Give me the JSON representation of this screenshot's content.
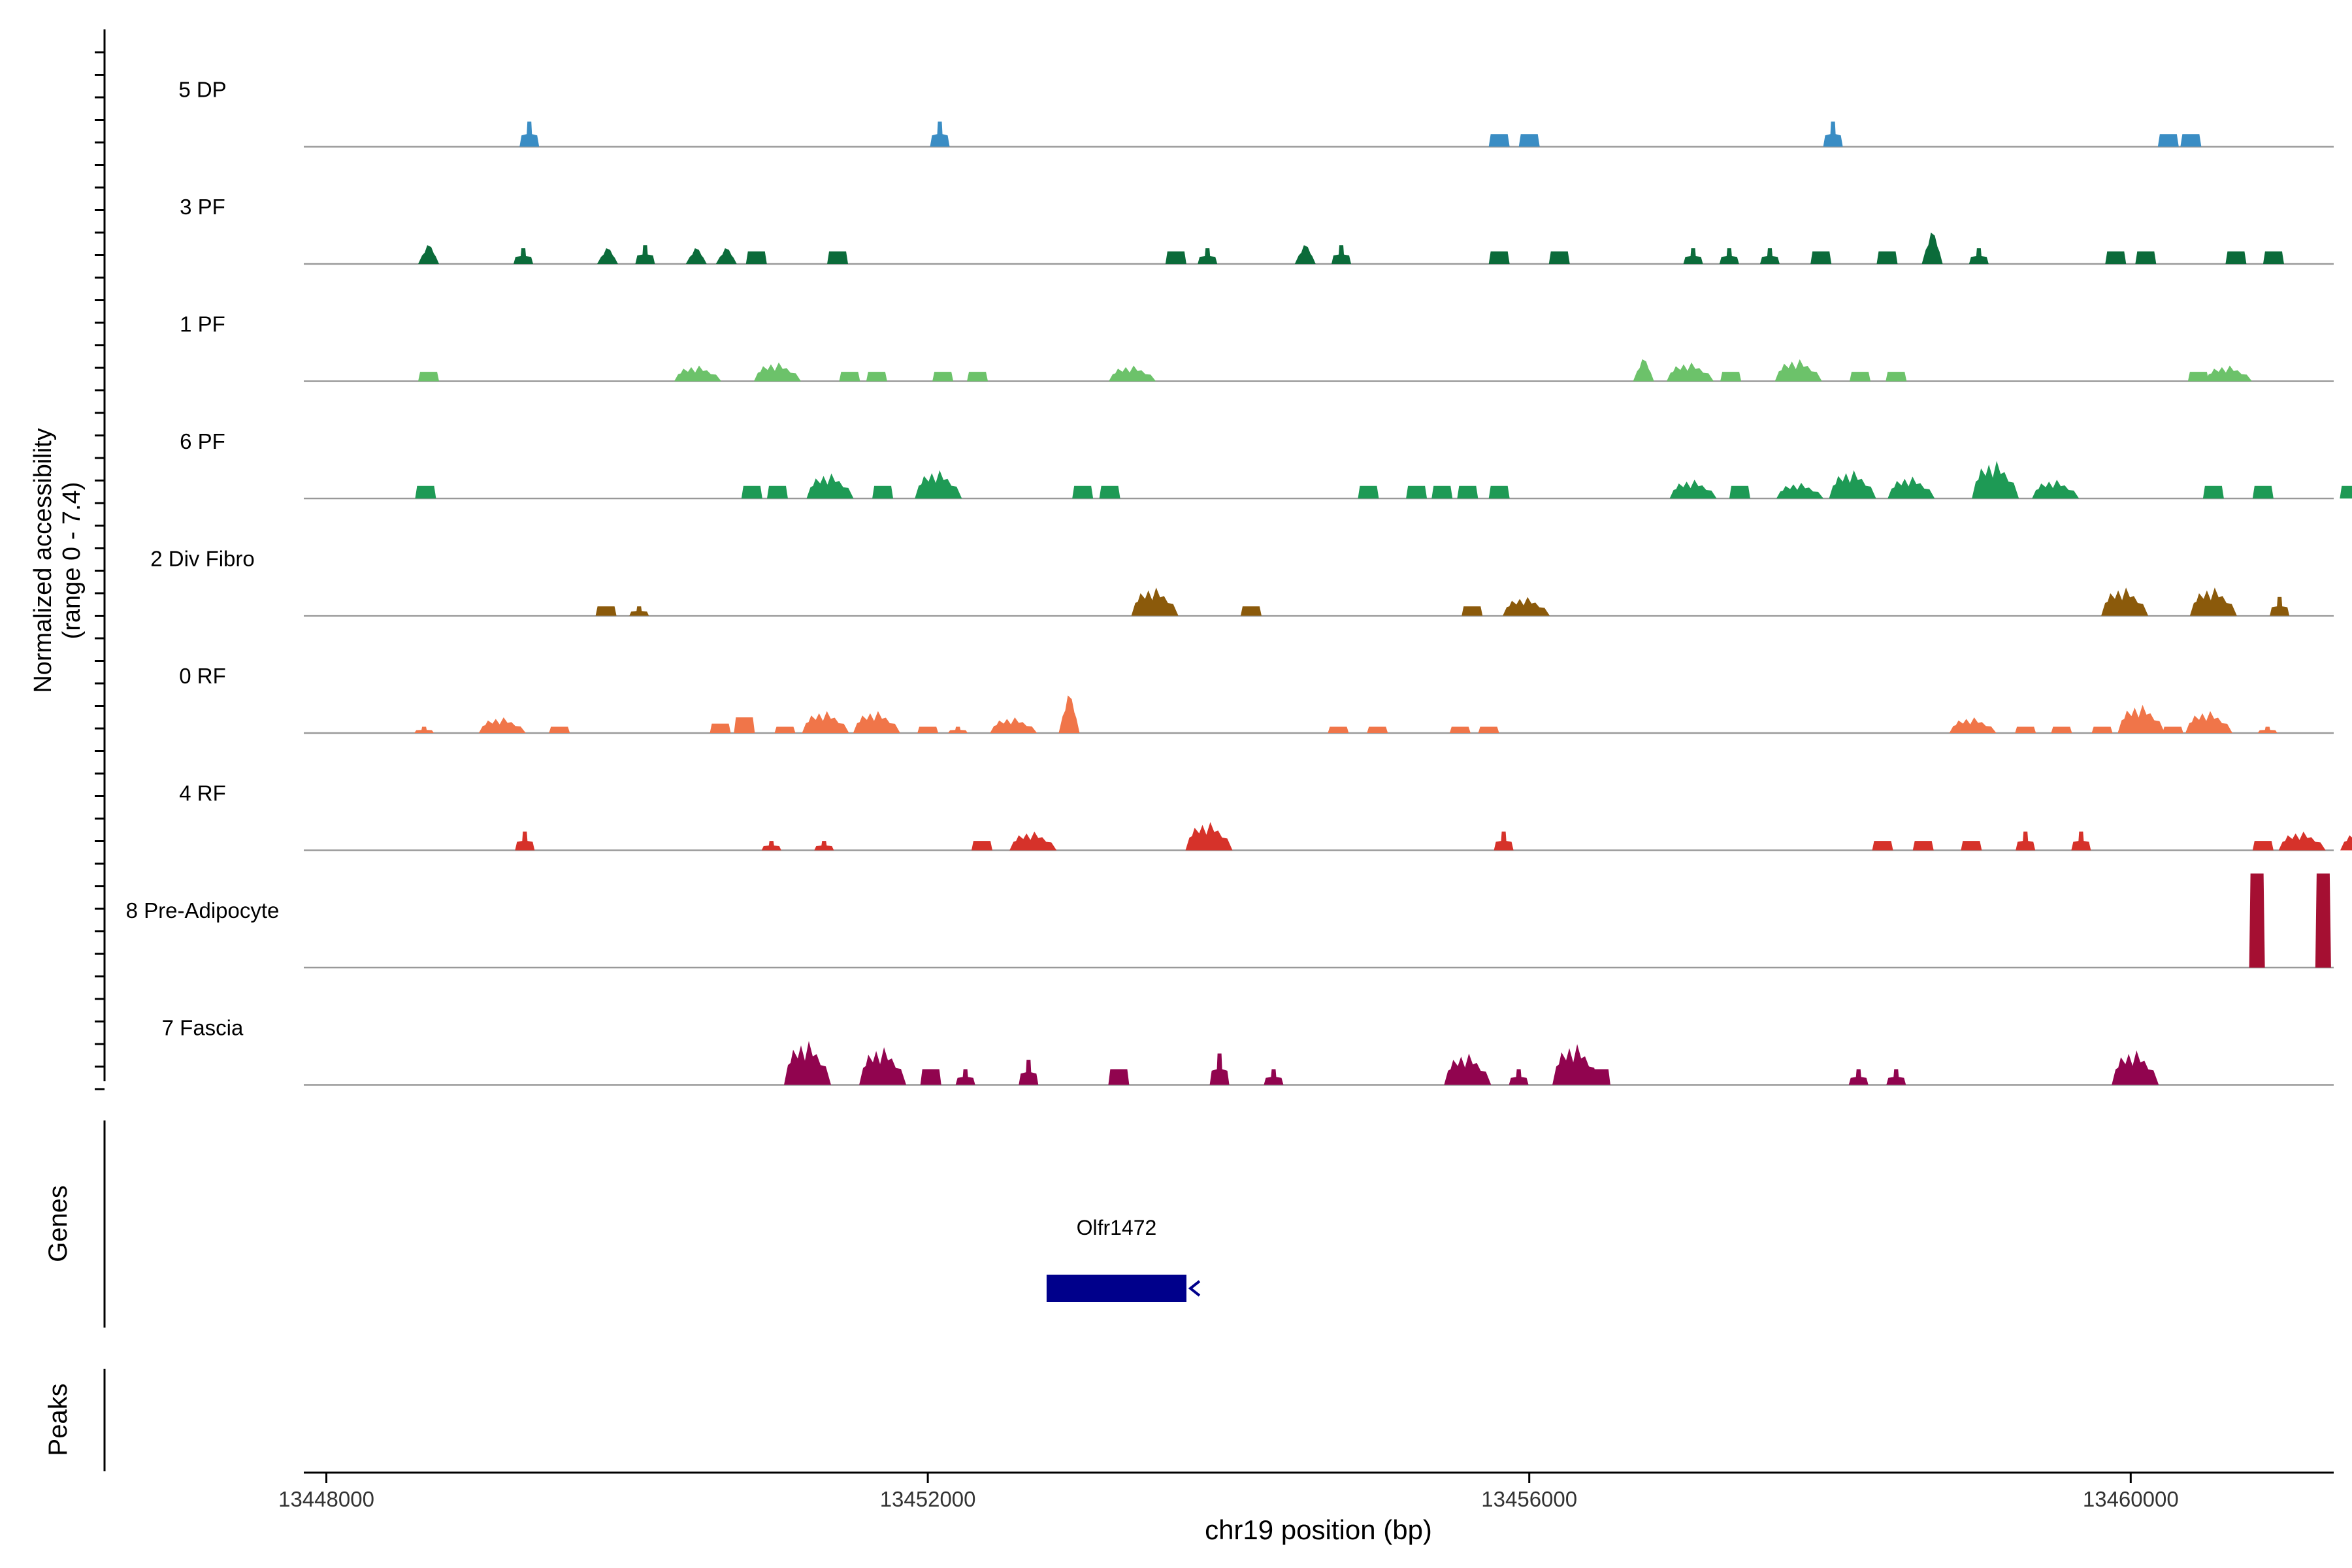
{
  "chart_data": {
    "type": "area",
    "ylabel_line1": "Normalized accessibility",
    "ylabel_line2": "(range 0 - 7.4)",
    "y_range": [
      0,
      7.4
    ],
    "xlabel": "chr19 position (bp)",
    "x_range": [
      13447850,
      13461350
    ],
    "x_ticks": [
      13448000,
      13452000,
      13456000,
      13460000
    ],
    "x_tick_labels": [
      "13448000",
      "13452000",
      "13456000",
      "13460000"
    ],
    "genes_label": "Genes",
    "peaks_label": "Peaks",
    "gene": {
      "name": "Olfr1472",
      "start": 13452790,
      "end": 13453720,
      "strand": "-",
      "color": "#00008B"
    },
    "tracks": [
      {
        "name": "5 DP",
        "color": "#3A8DC4",
        "peaks": [
          [
            13449350,
            0.8,
            "n"
          ],
          [
            13452080,
            0.8,
            "n"
          ],
          [
            13455800,
            0.4,
            "b"
          ],
          [
            13456000,
            0.4,
            "b"
          ],
          [
            13458020,
            0.8,
            "n"
          ],
          [
            13460250,
            0.4,
            "b"
          ],
          [
            13460400,
            0.4,
            "b"
          ]
        ]
      },
      {
        "name": "3 PF",
        "color": "#0B6B3A",
        "peaks": [
          [
            13448680,
            0.6,
            "w"
          ],
          [
            13449310,
            0.5,
            "n"
          ],
          [
            13449870,
            0.5,
            "w"
          ],
          [
            13450120,
            0.6,
            "n"
          ],
          [
            13450460,
            0.5,
            "w"
          ],
          [
            13450660,
            0.5,
            "w"
          ],
          [
            13450860,
            0.4,
            "b"
          ],
          [
            13451400,
            0.4,
            "b"
          ],
          [
            13453650,
            0.4,
            "b"
          ],
          [
            13453860,
            0.5,
            "n"
          ],
          [
            13454510,
            0.6,
            "w"
          ],
          [
            13454750,
            0.6,
            "n"
          ],
          [
            13455800,
            0.4,
            "b"
          ],
          [
            13456200,
            0.4,
            "b"
          ],
          [
            13457090,
            0.5,
            "n"
          ],
          [
            13457330,
            0.5,
            "n"
          ],
          [
            13457600,
            0.5,
            "n"
          ],
          [
            13457940,
            0.4,
            "b"
          ],
          [
            13458380,
            0.4,
            "b"
          ],
          [
            13458680,
            1.0,
            "w"
          ],
          [
            13458990,
            0.5,
            "n"
          ],
          [
            13459900,
            0.4,
            "b"
          ],
          [
            13460100,
            0.4,
            "b"
          ],
          [
            13460700,
            0.4,
            "b"
          ],
          [
            13460950,
            0.4,
            "b"
          ]
        ]
      },
      {
        "name": "1 PF",
        "color": "#6CC26A",
        "peaks": [
          [
            13448680,
            0.3,
            "b"
          ],
          [
            13450470,
            0.5,
            "f"
          ],
          [
            13451000,
            0.6,
            "f"
          ],
          [
            13451480,
            0.3,
            "b"
          ],
          [
            13451660,
            0.3,
            "b"
          ],
          [
            13452100,
            0.3,
            "b"
          ],
          [
            13452330,
            0.3,
            "b"
          ],
          [
            13453360,
            0.5,
            "f"
          ],
          [
            13456760,
            0.7,
            "w"
          ],
          [
            13457070,
            0.6,
            "f"
          ],
          [
            13457340,
            0.3,
            "b"
          ],
          [
            13457790,
            0.7,
            "f"
          ],
          [
            13458200,
            0.3,
            "b"
          ],
          [
            13458440,
            0.3,
            "b"
          ],
          [
            13460450,
            0.3,
            "b"
          ],
          [
            13460650,
            0.5,
            "f"
          ]
        ]
      },
      {
        "name": "6 PF",
        "color": "#1E9A55",
        "peaks": [
          [
            13448660,
            0.4,
            "b"
          ],
          [
            13450830,
            0.4,
            "b"
          ],
          [
            13451000,
            0.4,
            "b"
          ],
          [
            13451350,
            0.8,
            "f"
          ],
          [
            13451700,
            0.4,
            "b"
          ],
          [
            13452070,
            0.9,
            "f"
          ],
          [
            13453030,
            0.4,
            "b"
          ],
          [
            13453210,
            0.4,
            "b"
          ],
          [
            13454930,
            0.4,
            "b"
          ],
          [
            13455250,
            0.4,
            "b"
          ],
          [
            13455420,
            0.4,
            "b"
          ],
          [
            13455590,
            0.4,
            "b"
          ],
          [
            13455800,
            0.4,
            "b"
          ],
          [
            13457090,
            0.6,
            "f"
          ],
          [
            13457400,
            0.4,
            "b"
          ],
          [
            13457800,
            0.5,
            "f"
          ],
          [
            13458150,
            0.9,
            "f"
          ],
          [
            13458540,
            0.7,
            "f"
          ],
          [
            13459100,
            1.2,
            "f"
          ],
          [
            13459500,
            0.6,
            "f"
          ],
          [
            13460550,
            0.4,
            "b"
          ],
          [
            13460880,
            0.4,
            "b"
          ],
          [
            13461460,
            0.4,
            "b"
          ]
        ]
      },
      {
        "name": "2 Div Fibro",
        "color": "#8B5A0B",
        "peaks": [
          [
            13449860,
            0.3,
            "b"
          ],
          [
            13450080,
            0.3,
            "n"
          ],
          [
            13453510,
            0.9,
            "f"
          ],
          [
            13454150,
            0.3,
            "b"
          ],
          [
            13455620,
            0.3,
            "b"
          ],
          [
            13455980,
            0.6,
            "f"
          ],
          [
            13459960,
            0.9,
            "f"
          ],
          [
            13460550,
            0.9,
            "f"
          ],
          [
            13460990,
            0.6,
            "n"
          ]
        ]
      },
      {
        "name": "0 RF",
        "color": "#F07549",
        "peaks": [
          [
            13448650,
            0.2,
            "n"
          ],
          [
            13449170,
            0.5,
            "f"
          ],
          [
            13449550,
            0.2,
            "b"
          ],
          [
            13450620,
            0.3,
            "b"
          ],
          [
            13450780,
            0.5,
            "b"
          ],
          [
            13451050,
            0.2,
            "b"
          ],
          [
            13451320,
            0.7,
            "f"
          ],
          [
            13451660,
            0.7,
            "f"
          ],
          [
            13452000,
            0.2,
            "b"
          ],
          [
            13452200,
            0.2,
            "n"
          ],
          [
            13452570,
            0.5,
            "f"
          ],
          [
            13452940,
            1.2,
            "w"
          ],
          [
            13454730,
            0.2,
            "b"
          ],
          [
            13454990,
            0.2,
            "b"
          ],
          [
            13455540,
            0.2,
            "b"
          ],
          [
            13455730,
            0.2,
            "b"
          ],
          [
            13458950,
            0.5,
            "f"
          ],
          [
            13459300,
            0.2,
            "b"
          ],
          [
            13459540,
            0.2,
            "b"
          ],
          [
            13459810,
            0.2,
            "b"
          ],
          [
            13460070,
            0.9,
            "f"
          ],
          [
            13460280,
            0.2,
            "b"
          ],
          [
            13460520,
            0.7,
            "f"
          ],
          [
            13460910,
            0.2,
            "n"
          ]
        ]
      },
      {
        "name": "4 RF",
        "color": "#D6322A",
        "peaks": [
          [
            13449320,
            0.6,
            "n"
          ],
          [
            13450960,
            0.3,
            "n"
          ],
          [
            13451310,
            0.3,
            "n"
          ],
          [
            13452360,
            0.3,
            "b"
          ],
          [
            13452700,
            0.6,
            "f"
          ],
          [
            13453870,
            0.9,
            "f"
          ],
          [
            13455830,
            0.6,
            "n"
          ],
          [
            13458350,
            0.3,
            "b"
          ],
          [
            13458620,
            0.3,
            "b"
          ],
          [
            13458940,
            0.3,
            "b"
          ],
          [
            13459300,
            0.6,
            "n"
          ],
          [
            13459670,
            0.6,
            "n"
          ],
          [
            13460880,
            0.3,
            "b"
          ],
          [
            13461140,
            0.6,
            "f"
          ],
          [
            13461550,
            0.6,
            "f"
          ]
        ]
      },
      {
        "name": "8 Pre-Adipocyte",
        "color": "#A50F32",
        "peaks": [
          [
            13460840,
            3.0,
            "c"
          ],
          [
            13461280,
            3.0,
            "c"
          ]
        ]
      },
      {
        "name": "7 Fascia",
        "color": "#91044F",
        "peaks": [
          [
            13451200,
            1.4,
            "f"
          ],
          [
            13451700,
            1.2,
            "f"
          ],
          [
            13452020,
            0.5,
            "b"
          ],
          [
            13452250,
            0.5,
            "n"
          ],
          [
            13452670,
            0.8,
            "n"
          ],
          [
            13453270,
            0.5,
            "b"
          ],
          [
            13453940,
            1.0,
            "n"
          ],
          [
            13454300,
            0.5,
            "n"
          ],
          [
            13455590,
            1.0,
            "f"
          ],
          [
            13455930,
            0.5,
            "n"
          ],
          [
            13456310,
            1.3,
            "f"
          ],
          [
            13456470,
            0.5,
            "b"
          ],
          [
            13458190,
            0.5,
            "n"
          ],
          [
            13458440,
            0.5,
            "n"
          ],
          [
            13460030,
            1.1,
            "f"
          ]
        ]
      }
    ]
  }
}
